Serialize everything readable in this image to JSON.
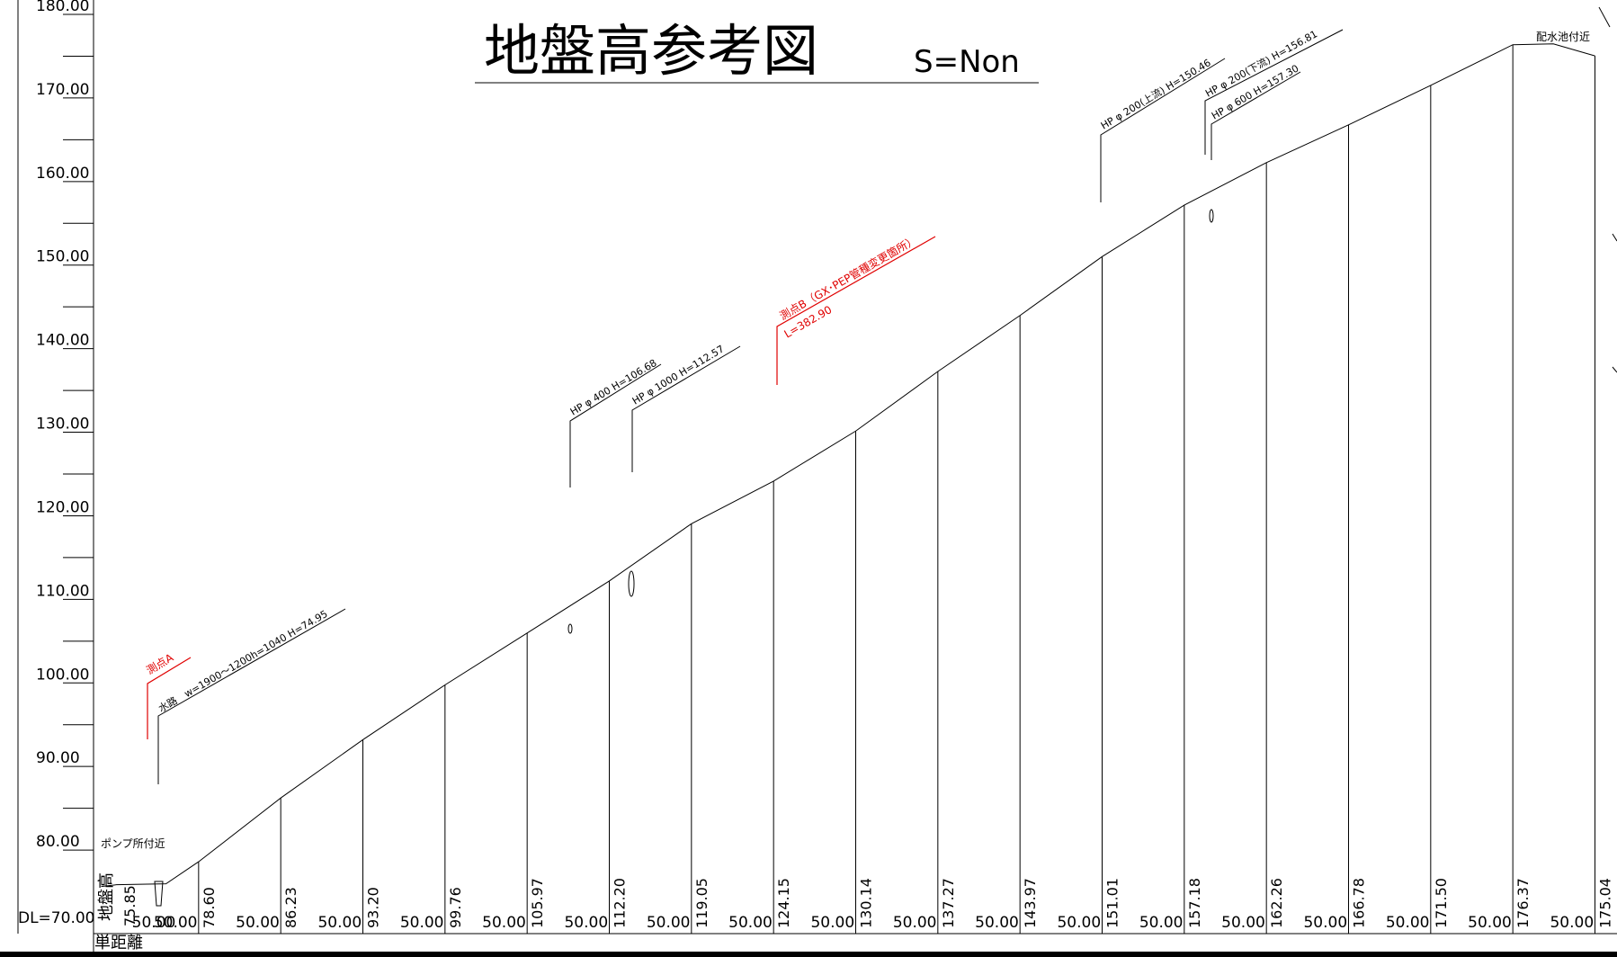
{
  "title": {
    "main": "地盤高参考図",
    "scale": "S=Non"
  },
  "axis": {
    "datum_label": "DL=70.00",
    "y_ticks": [
      "80.00",
      "90.00",
      "100.00",
      "110.00",
      "120.00",
      "130.00",
      "140.00",
      "150.00",
      "160.00",
      "170.00",
      "180.00"
    ],
    "row_labels": {
      "elevation": "地盤高",
      "distance": "単距離"
    }
  },
  "chart_data": {
    "type": "line",
    "xlabel": "単距離",
    "ylabel": "地盤高",
    "ylim": [
      70,
      180
    ],
    "station_interval": 50,
    "distances": [
      "50.00",
      "50.00",
      "50.00",
      "50.00",
      "50.00",
      "50.00",
      "50.00",
      "50.00",
      "50.00",
      "50.00",
      "50.00",
      "50.00",
      "50.00",
      "50.00",
      "50.00",
      "50.00",
      "50.00",
      "50.00",
      "50.00"
    ],
    "stations": [
      {
        "elev": "75.85"
      },
      {
        "elev": "78.60"
      },
      {
        "elev": "86.23"
      },
      {
        "elev": "93.20"
      },
      {
        "elev": "99.76"
      },
      {
        "elev": "105.97"
      },
      {
        "elev": "112.20"
      },
      {
        "elev": "119.05"
      },
      {
        "elev": "124.15"
      },
      {
        "elev": "130.14"
      },
      {
        "elev": "137.27"
      },
      {
        "elev": "143.97"
      },
      {
        "elev": "151.01"
      },
      {
        "elev": "157.18"
      },
      {
        "elev": "162.26"
      },
      {
        "elev": "166.78"
      },
      {
        "elev": "171.50"
      },
      {
        "elev": "176.37"
      },
      {
        "elev": "175.04"
      }
    ]
  },
  "annotations": {
    "pump": "ポンプ所付近",
    "reservoir": "配水池付近",
    "point_a": "測点A",
    "waterway": "水路　w=1900～1200h=1040 H=74.95",
    "hp400": "HP φ 400 H=106.68",
    "hp1000": "HP φ 1000 H=112.57",
    "point_b": "測点B（GX･PEP管種変更箇所）",
    "point_b_len": "L=382.90",
    "hp200_up": "HP φ 200(上流) H=150.46",
    "hp200_down": "HP φ 200(下流) H=156.81",
    "hp600": "HP φ 600 H=157.30"
  }
}
